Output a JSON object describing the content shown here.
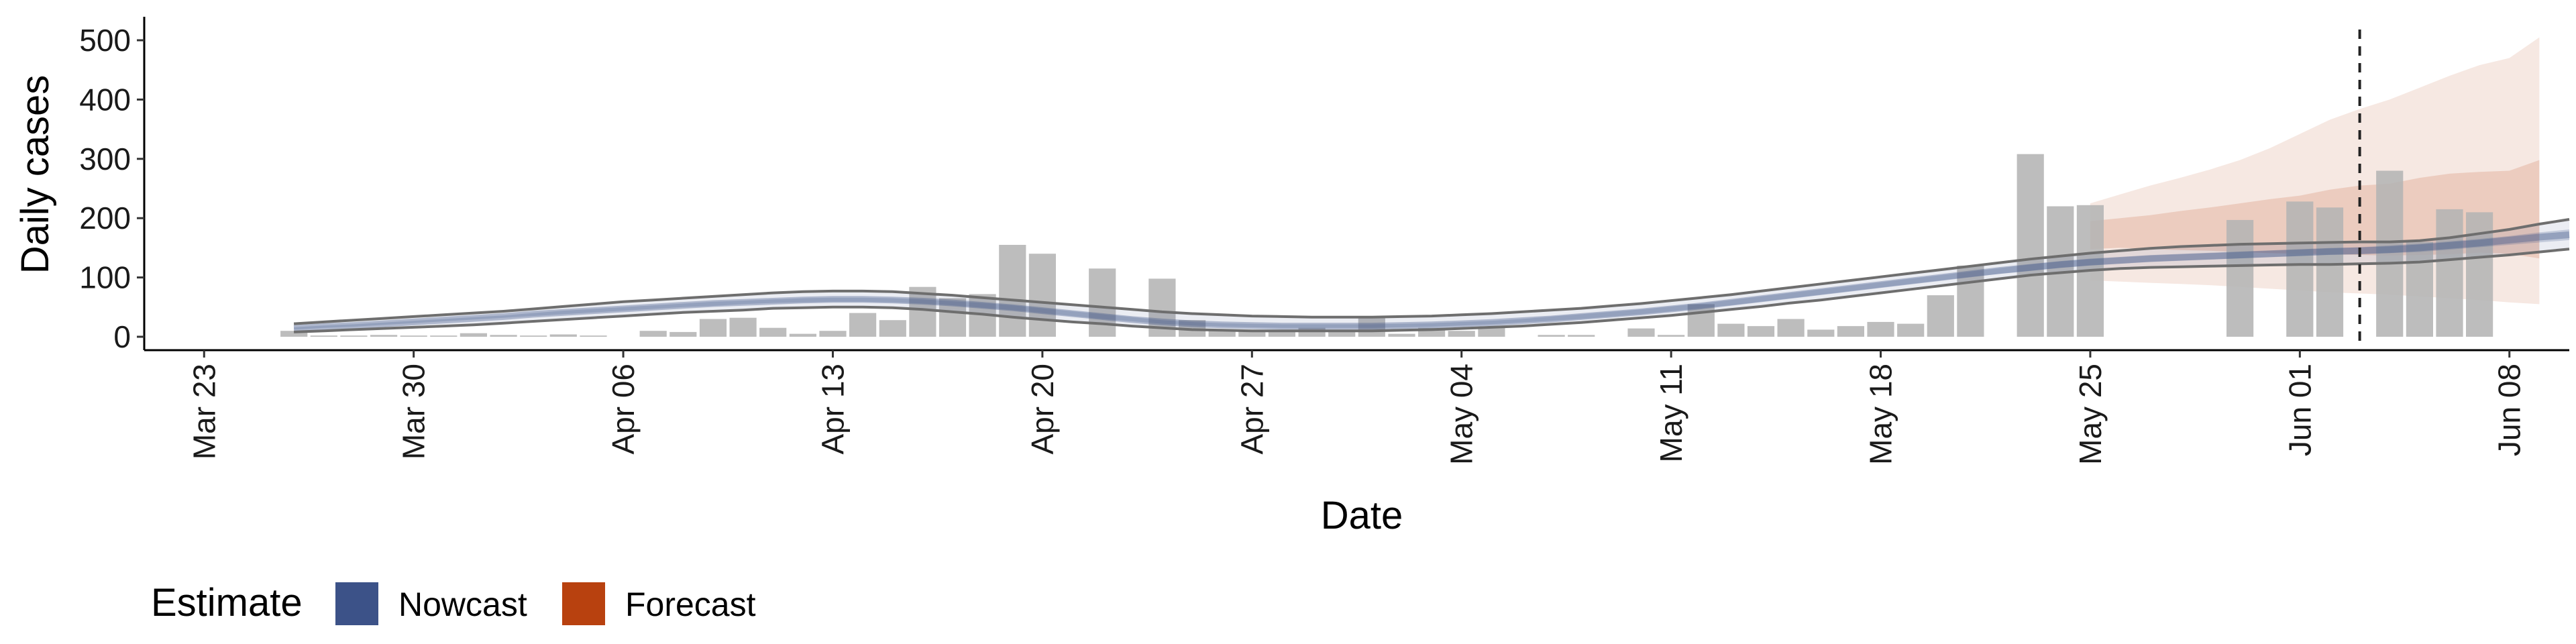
{
  "chart_data": {
    "type": "bar",
    "xlabel": "Date",
    "ylabel": "Daily cases",
    "ylim": [
      0,
      500
    ],
    "yticks": [
      0,
      100,
      200,
      300,
      400,
      500
    ],
    "x_tick_labels": [
      "Mar 23",
      "Mar 30",
      "Apr 06",
      "Apr 13",
      "Apr 20",
      "Apr 27",
      "May 04",
      "May 11",
      "May 18",
      "May 25",
      "Jun 01",
      "Jun 08"
    ],
    "xlim": [
      "2020-03-21",
      "2020-06-10"
    ],
    "reference_line": "2020-06-03",
    "grid": false,
    "colors": {
      "bars": "#b4b4b4",
      "nowcast": "#3c5288",
      "forecast": "#b8410f",
      "line": "#6e6e6e"
    },
    "daily_cases": {
      "start": "2020-03-26",
      "values": [
        10,
        2,
        2,
        3,
        2,
        2,
        6,
        3,
        2,
        4,
        2,
        0,
        10,
        8,
        30,
        32,
        15,
        5,
        10,
        40,
        28,
        84,
        65,
        72,
        155,
        140,
        0,
        115,
        0,
        98,
        28,
        12,
        10,
        10,
        15,
        8,
        35,
        5,
        15,
        10,
        15,
        0,
        3,
        3,
        0,
        14,
        3,
        55,
        22,
        18,
        30,
        12,
        18,
        25,
        22,
        70,
        120,
        0,
        308,
        220,
        222,
        0,
        0,
        0,
        0,
        197,
        0,
        228,
        218,
        0,
        280,
        160,
        215,
        210
      ]
    },
    "series": [
      {
        "name": "Nowcast",
        "start": "2020-03-26",
        "median": [
          14,
          17,
          19,
          22,
          25,
          28,
          31,
          34,
          38,
          41,
          44,
          47,
          50,
          53,
          56,
          58,
          60,
          62,
          63,
          63,
          62,
          60,
          57,
          53,
          49,
          44,
          39,
          34,
          29,
          25,
          22,
          20,
          19,
          18,
          18,
          18,
          18,
          19,
          20,
          22,
          24,
          27,
          30,
          34,
          38,
          42,
          47,
          52,
          58,
          64,
          70,
          76,
          82,
          88,
          94,
          100,
          106,
          112,
          117,
          122,
          126,
          129,
          132,
          134,
          136,
          138,
          140,
          142,
          144,
          145,
          147,
          150,
          154,
          158,
          163,
          168,
          172
        ],
        "lower_50": [
          12,
          15,
          17,
          20,
          23,
          26,
          29,
          32,
          35,
          38,
          41,
          44,
          47,
          50,
          52,
          55,
          57,
          58,
          59,
          59,
          58,
          56,
          53,
          49,
          45,
          40,
          35,
          30,
          26,
          22,
          19,
          17,
          16,
          15,
          15,
          15,
          15,
          16,
          17,
          19,
          21,
          24,
          27,
          30,
          34,
          38,
          43,
          48,
          53,
          59,
          65,
          71,
          77,
          83,
          89,
          95,
          101,
          106,
          111,
          116,
          120,
          123,
          126,
          128,
          130,
          132,
          134,
          136,
          138,
          139,
          141,
          143,
          147,
          151,
          155,
          159,
          163
        ],
        "upper_50": [
          16,
          19,
          21,
          24,
          27,
          30,
          33,
          36,
          40,
          44,
          47,
          50,
          53,
          56,
          59,
          61,
          63,
          65,
          66,
          66,
          65,
          63,
          60,
          57,
          53,
          48,
          43,
          38,
          33,
          28,
          25,
          23,
          22,
          21,
          21,
          21,
          21,
          22,
          23,
          25,
          27,
          30,
          34,
          38,
          42,
          46,
          51,
          56,
          62,
          68,
          74,
          80,
          86,
          92,
          98,
          104,
          110,
          116,
          122,
          127,
          131,
          134,
          137,
          139,
          141,
          143,
          145,
          147,
          149,
          151,
          154,
          157,
          161,
          165,
          170,
          176,
          181
        ],
        "lower_90": [
          8,
          10,
          12,
          14,
          16,
          18,
          20,
          23,
          26,
          29,
          32,
          35,
          38,
          41,
          43,
          45,
          48,
          49,
          50,
          50,
          49,
          46,
          42,
          38,
          33,
          29,
          25,
          22,
          18,
          15,
          12,
          11,
          10,
          10,
          10,
          10,
          10,
          11,
          12,
          14,
          16,
          18,
          21,
          24,
          28,
          32,
          36,
          41,
          46,
          51,
          57,
          62,
          68,
          74,
          80,
          86,
          92,
          98,
          104,
          108,
          112,
          115,
          117,
          118,
          119,
          120,
          121,
          122,
          122,
          123,
          124,
          126,
          130,
          134,
          138,
          143,
          148
        ],
        "upper_90": [
          22,
          25,
          28,
          31,
          34,
          37,
          40,
          43,
          47,
          51,
          55,
          59,
          62,
          65,
          68,
          71,
          74,
          76,
          77,
          77,
          76,
          73,
          70,
          66,
          62,
          58,
          54,
          50,
          46,
          42,
          39,
          37,
          35,
          34,
          33,
          33,
          33,
          34,
          35,
          37,
          39,
          42,
          45,
          48,
          52,
          56,
          61,
          66,
          71,
          77,
          83,
          89,
          95,
          101,
          107,
          113,
          119,
          125,
          131,
          136,
          141,
          145,
          149,
          152,
          154,
          156,
          157,
          158,
          159,
          160,
          160,
          162,
          167,
          174,
          181,
          190,
          198
        ]
      },
      {
        "name": "Forecast",
        "start": "2020-05-25",
        "lower_90": [
          95,
          93,
          91,
          89,
          87,
          84,
          81,
          78,
          75,
          73,
          71,
          68,
          65,
          62,
          58,
          55
        ],
        "lower_50": [
          148,
          150,
          148,
          146,
          145,
          143,
          141,
          140,
          139,
          138,
          137,
          138,
          139,
          142,
          140,
          132
        ],
        "upper_50": [
          195,
          200,
          205,
          212,
          218,
          225,
          232,
          238,
          248,
          255,
          258,
          268,
          275,
          278,
          280,
          298
        ],
        "upper_90": [
          225,
          240,
          255,
          268,
          282,
          298,
          318,
          342,
          366,
          384,
          400,
          420,
          440,
          458,
          470,
          505
        ]
      }
    ],
    "legend": {
      "title": "Estimate",
      "position": "bottom-left",
      "items": [
        {
          "name": "Nowcast",
          "color": "#3c5288"
        },
        {
          "name": "Forecast",
          "color": "#b8410f"
        }
      ]
    }
  }
}
